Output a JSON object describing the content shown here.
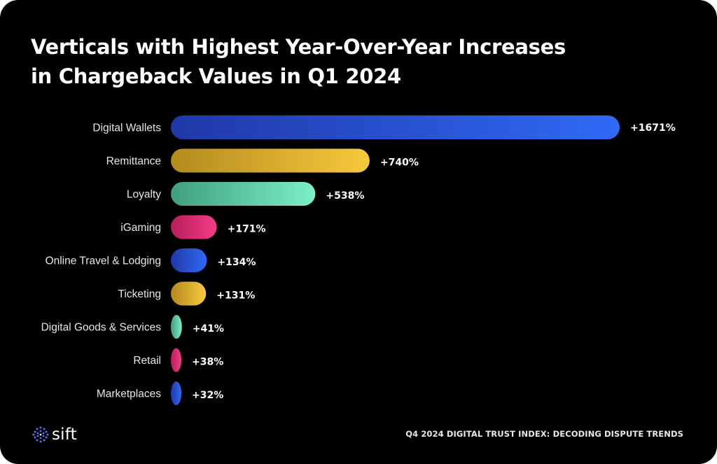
{
  "chart_data": {
    "type": "bar",
    "orientation": "horizontal",
    "title_lines": [
      "Verticals with Highest Year-Over-Year Increases",
      "in Chargeback Values in Q1 2024"
    ],
    "categories": [
      "Digital Wallets",
      "Remittance",
      "Loyalty",
      "iGaming",
      "Online Travel & Lodging",
      "Ticketing",
      "Digital Goods & Services",
      "Retail",
      "Marketplaces"
    ],
    "values": [
      1671,
      740,
      538,
      171,
      134,
      131,
      41,
      38,
      32
    ],
    "value_labels": [
      "+1671%",
      "+740%",
      "+538%",
      "+171%",
      "+134%",
      "+131%",
      "+41%",
      "+38%",
      "+32%"
    ],
    "unit": "%",
    "xlim": [
      0,
      1671
    ],
    "grid": false,
    "legend": "none",
    "bar_colors": [
      "blue",
      "gold",
      "green",
      "pink",
      "blue",
      "gold",
      "green",
      "pink",
      "blue"
    ]
  },
  "palette": {
    "blue": [
      "#2038a8",
      "#2f6af5"
    ],
    "gold": [
      "#b48a1e",
      "#f7c93c"
    ],
    "green": [
      "#3f9e7f",
      "#7cf0c8"
    ],
    "pink": [
      "#b81e5a",
      "#f23d88"
    ]
  },
  "branding": {
    "logo_text": "sift",
    "logo_icon": "sift-dots-icon",
    "logo_color": "#5b6cff"
  },
  "footer": {
    "text": "Q4 2024 DIGITAL TRUST INDEX: DECODING DISPUTE TRENDS"
  }
}
